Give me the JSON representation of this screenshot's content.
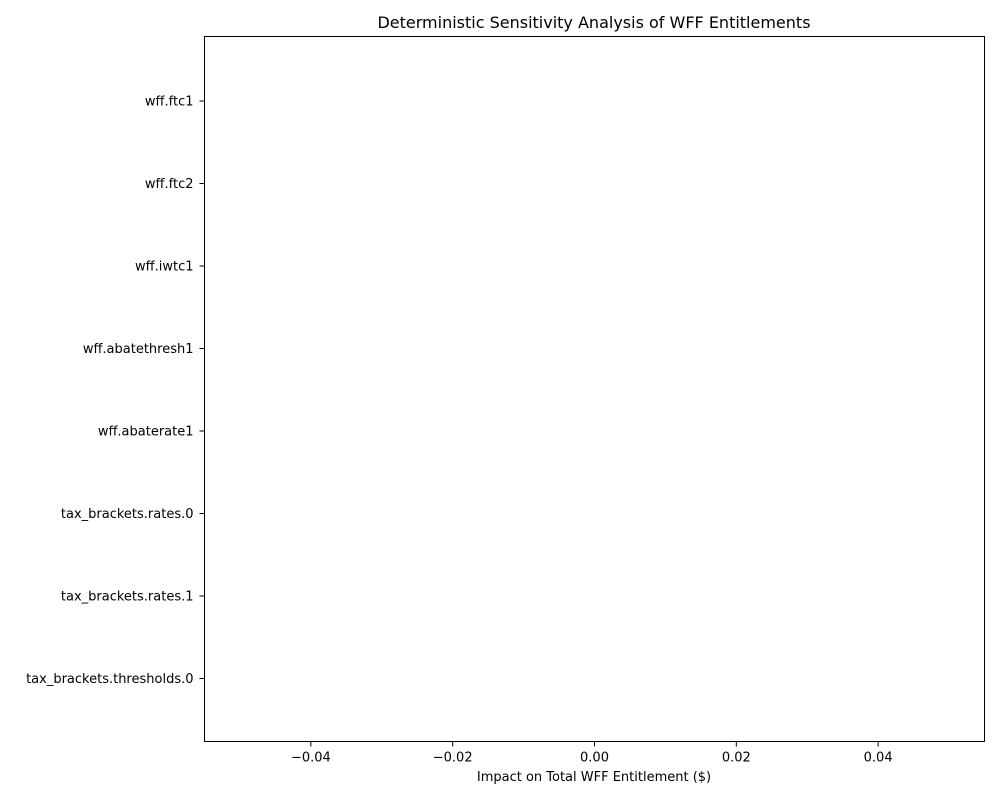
{
  "chart_data": {
    "type": "bar",
    "orientation": "horizontal",
    "title": "Deterministic Sensitivity Analysis of WFF Entitlements",
    "xlabel": "Impact on Total WFF Entitlement ($)",
    "ylabel": "",
    "categories": [
      "wff.ftc1",
      "wff.ftc2",
      "wff.iwtc1",
      "wff.abatethresh1",
      "wff.abaterate1",
      "tax_brackets.rates.0",
      "tax_brackets.rates.1",
      "tax_brackets.thresholds.0"
    ],
    "values": [
      0,
      0,
      0,
      0,
      0,
      0,
      0,
      0
    ],
    "xlim": [
      -0.055,
      0.055
    ],
    "xticks": [
      -0.04,
      -0.02,
      0.0,
      0.02,
      0.04
    ],
    "xtick_labels": [
      "−0.04",
      "−0.02",
      "0.00",
      "0.02",
      "0.04"
    ],
    "grid": false,
    "legend": "none",
    "colors": {
      "axis": "#000000",
      "background": "#ffffff",
      "bar": "#1f77b4"
    }
  }
}
